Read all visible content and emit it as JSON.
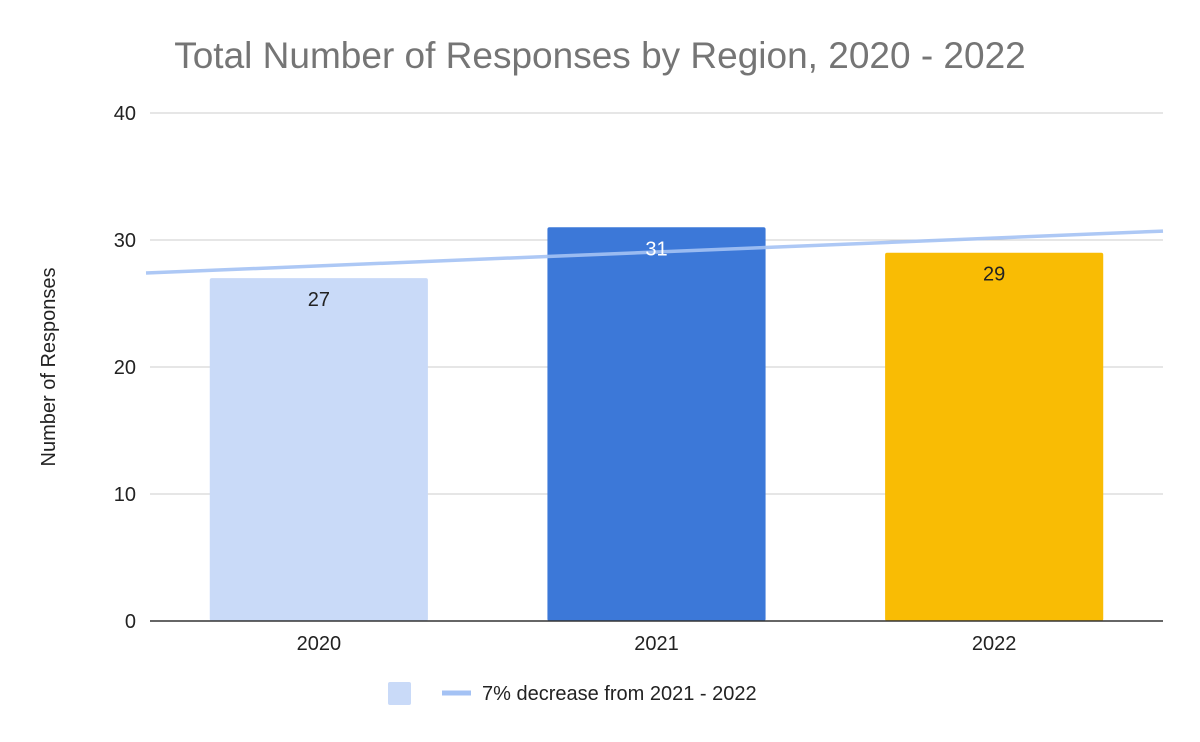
{
  "chart_data": {
    "type": "bar",
    "title": "Total Number of Responses by Region, 2020 - 2022",
    "xlabel": "",
    "ylabel": "Number of Responses",
    "categories": [
      "2020",
      "2021",
      "2022"
    ],
    "values": [
      27,
      31,
      29
    ],
    "data_labels": [
      "27",
      "31",
      "29"
    ],
    "bar_colors": [
      "#c9daf8",
      "#3c78d8",
      "#f9bc04"
    ],
    "data_label_colors": [
      "#222222",
      "#ffffff",
      "#222222"
    ],
    "ylim": [
      0,
      40
    ],
    "yticks": [
      0,
      10,
      20,
      30,
      40
    ],
    "ytick_labels": [
      "0",
      "10",
      "20",
      "30",
      "40"
    ],
    "grid": true,
    "trendline": {
      "name": "7% decrease from 2021 - 2022",
      "color": "#a4c2f4",
      "y_at_left_edge": 27.4,
      "y_at_right_edge": 30.7
    },
    "legend": {
      "position": "bottom",
      "entries": [
        {
          "label": "",
          "marker": "square",
          "color": "#c9daf8"
        },
        {
          "label": "7% decrease from 2021 - 2022",
          "marker": "line",
          "color": "#a4c2f4"
        }
      ]
    }
  }
}
